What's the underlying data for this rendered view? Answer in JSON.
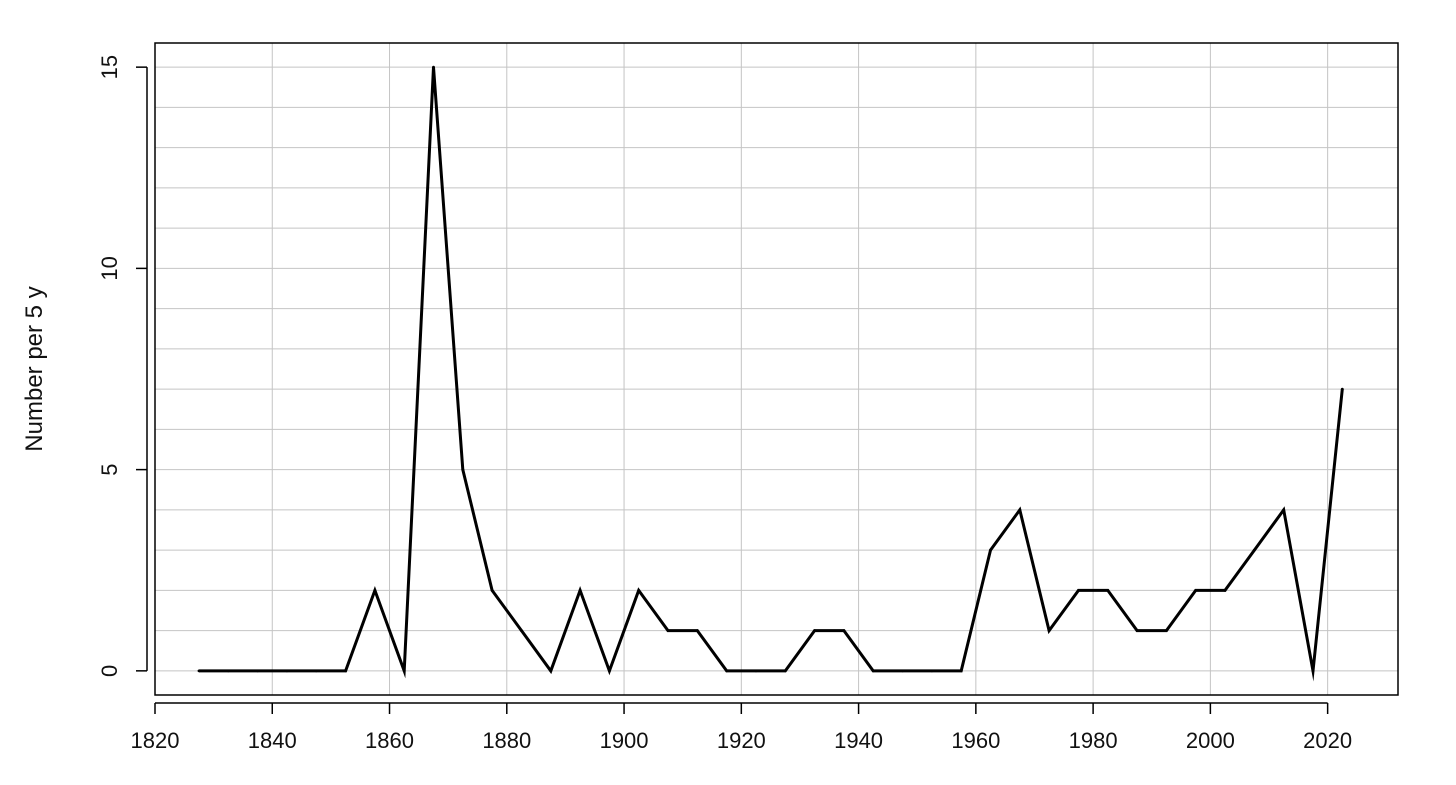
{
  "chart_data": {
    "type": "line",
    "title": "",
    "xlabel": "",
    "ylabel": "Number per 5 y",
    "xlim": [
      1820,
      2032
    ],
    "ylim": [
      -0.6,
      15.6
    ],
    "x_ticks": [
      1820,
      1840,
      1860,
      1880,
      1900,
      1920,
      1940,
      1960,
      1980,
      2000,
      2020
    ],
    "y_ticks": [
      0,
      5,
      10,
      15
    ],
    "grid": true,
    "legend": "none",
    "series": [
      {
        "color": "#000000",
        "x": [
          1827.5,
          1832.5,
          1837.5,
          1842.5,
          1847.5,
          1852.5,
          1857.5,
          1862.5,
          1867.5,
          1872.5,
          1877.5,
          1882.5,
          1887.5,
          1892.5,
          1897.5,
          1902.5,
          1907.5,
          1912.5,
          1917.5,
          1922.5,
          1927.5,
          1932.5,
          1937.5,
          1942.5,
          1947.5,
          1952.5,
          1957.5,
          1962.5,
          1967.5,
          1972.5,
          1977.5,
          1982.5,
          1987.5,
          1992.5,
          1997.5,
          2002.5,
          2007.5,
          2012.5,
          2017.5,
          2022.5
        ],
        "values": [
          0,
          0,
          0,
          0,
          0,
          0,
          2,
          0,
          15,
          5,
          2,
          1,
          0,
          2,
          0,
          2,
          1,
          1,
          0,
          0,
          0,
          1,
          1,
          0,
          0,
          0,
          0,
          3,
          4,
          1,
          2,
          2,
          1,
          1,
          2,
          2,
          3,
          4,
          0,
          7
        ]
      }
    ]
  }
}
